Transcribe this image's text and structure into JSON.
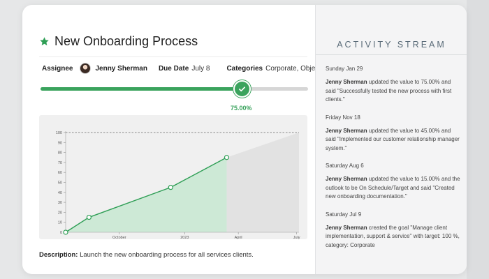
{
  "goal": {
    "title": "New Onboarding Process",
    "assignee_label": "Assignee",
    "assignee_name": "Jenny Sherman",
    "due_label": "Due Date",
    "due_value": "July 8",
    "categories_label": "Categories",
    "categories_value": "Corporate, Objective",
    "progress_percent": 75,
    "progress_label": "75.00%",
    "description_label": "Description:",
    "description_text": "Launch the new onboarding process for all services clients."
  },
  "chart_data": {
    "type": "line",
    "y_ticks": [
      "0",
      "10",
      "20",
      "30",
      "40",
      "50",
      "60",
      "70",
      "80",
      "90",
      "100"
    ],
    "ylim": [
      0,
      100
    ],
    "x_ticks": [
      "October",
      "2023",
      "April",
      "July"
    ],
    "target": 100,
    "series": [
      {
        "points": [
          [
            0,
            0
          ],
          [
            0.1,
            15
          ],
          [
            0.45,
            45
          ],
          [
            0.69,
            75
          ]
        ]
      }
    ],
    "colors": {
      "line": "#2e9e55",
      "fill": "#cde9d6",
      "projection": "#e2e2e2",
      "target": "#888888"
    }
  },
  "activity": {
    "title": "ACTIVITY STREAM",
    "entries": [
      {
        "date": "Sunday Jan 29",
        "user": "Jenny Sherman",
        "text": " updated the value to 75.00% and said \"Successfully tested the new process with first clients.\""
      },
      {
        "date": "Friday Nov 18",
        "user": "Jenny Sherman",
        "text": " updated the value to 45.00% and said \"Implemented our customer relationship manager system.\""
      },
      {
        "date": "Saturday Aug 6",
        "user": "Jenny Sherman",
        "text": " updated the value to 15.00% and the outlook to be On Schedule/Target and said \"Created new onboarding documentation.\""
      },
      {
        "date": "Saturday Jul 9",
        "user": "Jenny Sherman",
        "text": " created the goal \"Manage client implementation, support & service\" with target: 100 %, category: Corporate"
      }
    ]
  },
  "colors": {
    "accent": "#3aa35d",
    "track": "#d6d6d6"
  }
}
